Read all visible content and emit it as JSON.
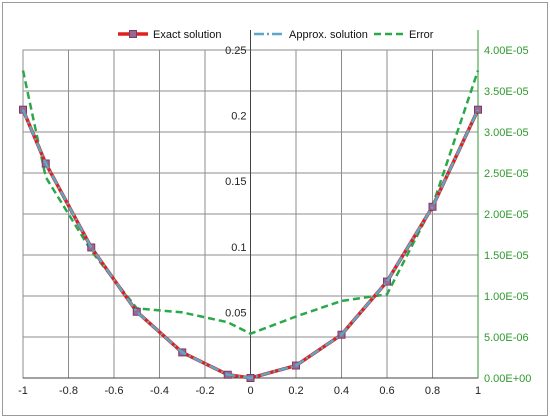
{
  "chart_data": {
    "type": "line",
    "title": "",
    "xlabel": "",
    "ylabel": "",
    "xlim": [
      -1,
      1
    ],
    "ylim": [
      0,
      0.25
    ],
    "y2lim": [
      0,
      4e-05
    ],
    "grid": true,
    "legend_position": "top",
    "x_ticks": [
      "-1",
      "-0.8",
      "-0.6",
      "-0.4",
      "-0.2",
      "0",
      "0.2",
      "0.4",
      "0.6",
      "0.8",
      "1"
    ],
    "y_ticks": [
      "0",
      "0.05",
      "0.1",
      "0.15",
      "0.2",
      "0.25"
    ],
    "y2_ticks": [
      "0.00E+00",
      "5.00E-06",
      "1.00E-05",
      "1.50E-05",
      "2.00E-05",
      "2.50E-05",
      "3.00E-05",
      "3.50E-05",
      "4.00E-05"
    ],
    "series": [
      {
        "name": "Exact solution",
        "axis": "left",
        "color": "#e0201b",
        "style": "solid-square-markers",
        "x": [
          -1,
          -0.9,
          -0.7,
          -0.5,
          -0.3,
          -0.1,
          0,
          0.2,
          0.4,
          0.6,
          0.8,
          1
        ],
        "y": [
          0.2045,
          0.1635,
          0.0995,
          0.0505,
          0.0195,
          0.0025,
          0,
          0.0095,
          0.033,
          0.0735,
          0.1305,
          0.2045
        ]
      },
      {
        "name": "Approx. solution",
        "axis": "left",
        "color": "#5aa8c8",
        "style": "dash-dot",
        "x": [
          -1,
          -0.9,
          -0.7,
          -0.5,
          -0.3,
          -0.1,
          0,
          0.2,
          0.4,
          0.6,
          0.8,
          1
        ],
        "y": [
          0.2045,
          0.1635,
          0.0995,
          0.0505,
          0.0195,
          0.0025,
          0,
          0.0095,
          0.033,
          0.0735,
          0.1305,
          0.2045
        ]
      },
      {
        "name": "Error",
        "axis": "right",
        "color": "#2aa84a",
        "style": "dashed",
        "x": [
          -1,
          -0.9,
          -0.7,
          -0.5,
          -0.3,
          -0.1,
          0,
          0.2,
          0.4,
          0.6,
          0.8,
          1
        ],
        "y": [
          3.75e-05,
          2.45e-05,
          1.55e-05,
          8.5e-06,
          8e-06,
          6.8e-06,
          5.4e-06,
          7.5e-06,
          9.4e-06,
          1.02e-05,
          2.1e-05,
          3.75e-05
        ]
      }
    ]
  }
}
